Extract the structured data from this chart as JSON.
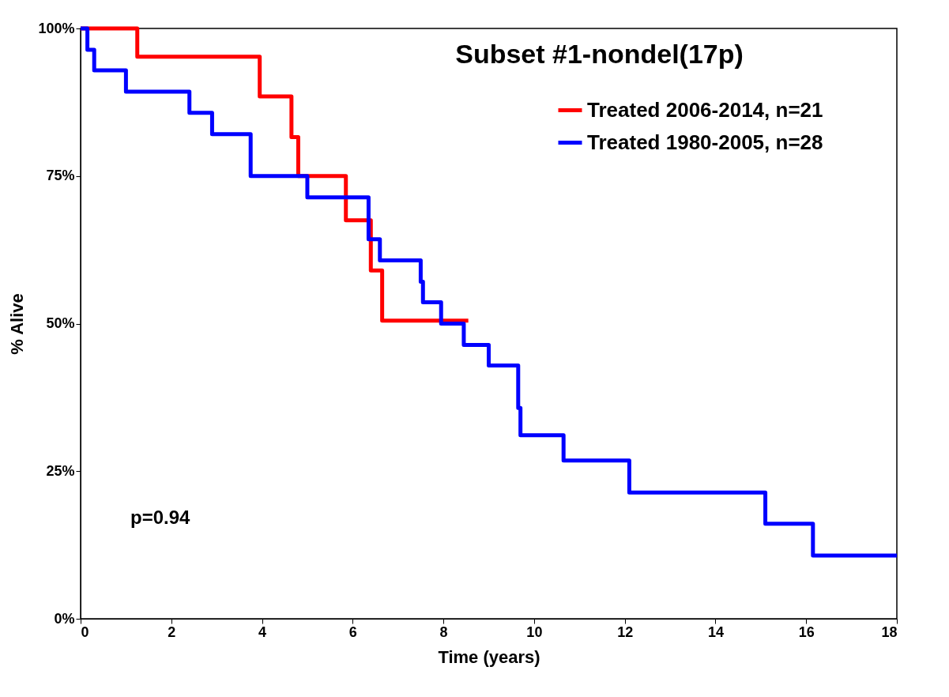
{
  "chart_data": {
    "type": "step",
    "title": "Subset #1-nondel(17p)",
    "xlabel": "Time (years)",
    "ylabel": "% Alive",
    "xlim": [
      0,
      18
    ],
    "xticks": [
      0,
      2,
      4,
      6,
      8,
      10,
      12,
      14,
      16,
      18
    ],
    "ylim": [
      0,
      100
    ],
    "yticks": [
      {
        "value": 0,
        "label": "0%"
      },
      {
        "value": 25,
        "label": "25%"
      },
      {
        "value": 50,
        "label": "50%"
      },
      {
        "value": 75,
        "label": "75%"
      },
      {
        "value": 100,
        "label": "100%"
      }
    ],
    "grid": false,
    "legend": "top right",
    "marker": "none",
    "line_style": "solid",
    "annotations": [
      "p=0.94"
    ],
    "series": [
      {
        "name": "Treated 2006-2014, n=21",
        "color": "#ff0000",
        "x": [
          0,
          1.25,
          3.95,
          4.65,
          4.8,
          5.85,
          6.4,
          6.65,
          8.55
        ],
        "values": [
          100,
          95.2,
          88.5,
          81.6,
          75,
          67.5,
          59,
          50.5,
          50.5
        ]
      },
      {
        "name": "Treated  1980-2005, n=28",
        "color": "#0000ff",
        "x": [
          0,
          0.15,
          0.3,
          1.0,
          2.4,
          2.9,
          3.75,
          5.0,
          6.35,
          6.6,
          7.5,
          7.55,
          7.95,
          8.45,
          9.0,
          9.65,
          9.7,
          10.65,
          12.1,
          15.1,
          16.15,
          18
        ],
        "values": [
          100,
          96.4,
          92.9,
          89.3,
          85.7,
          82.1,
          75,
          71.4,
          64.3,
          60.7,
          57.1,
          53.6,
          50,
          46.4,
          42.9,
          35.7,
          31.1,
          26.8,
          21.4,
          16.1,
          10.7,
          10.7
        ]
      }
    ]
  }
}
